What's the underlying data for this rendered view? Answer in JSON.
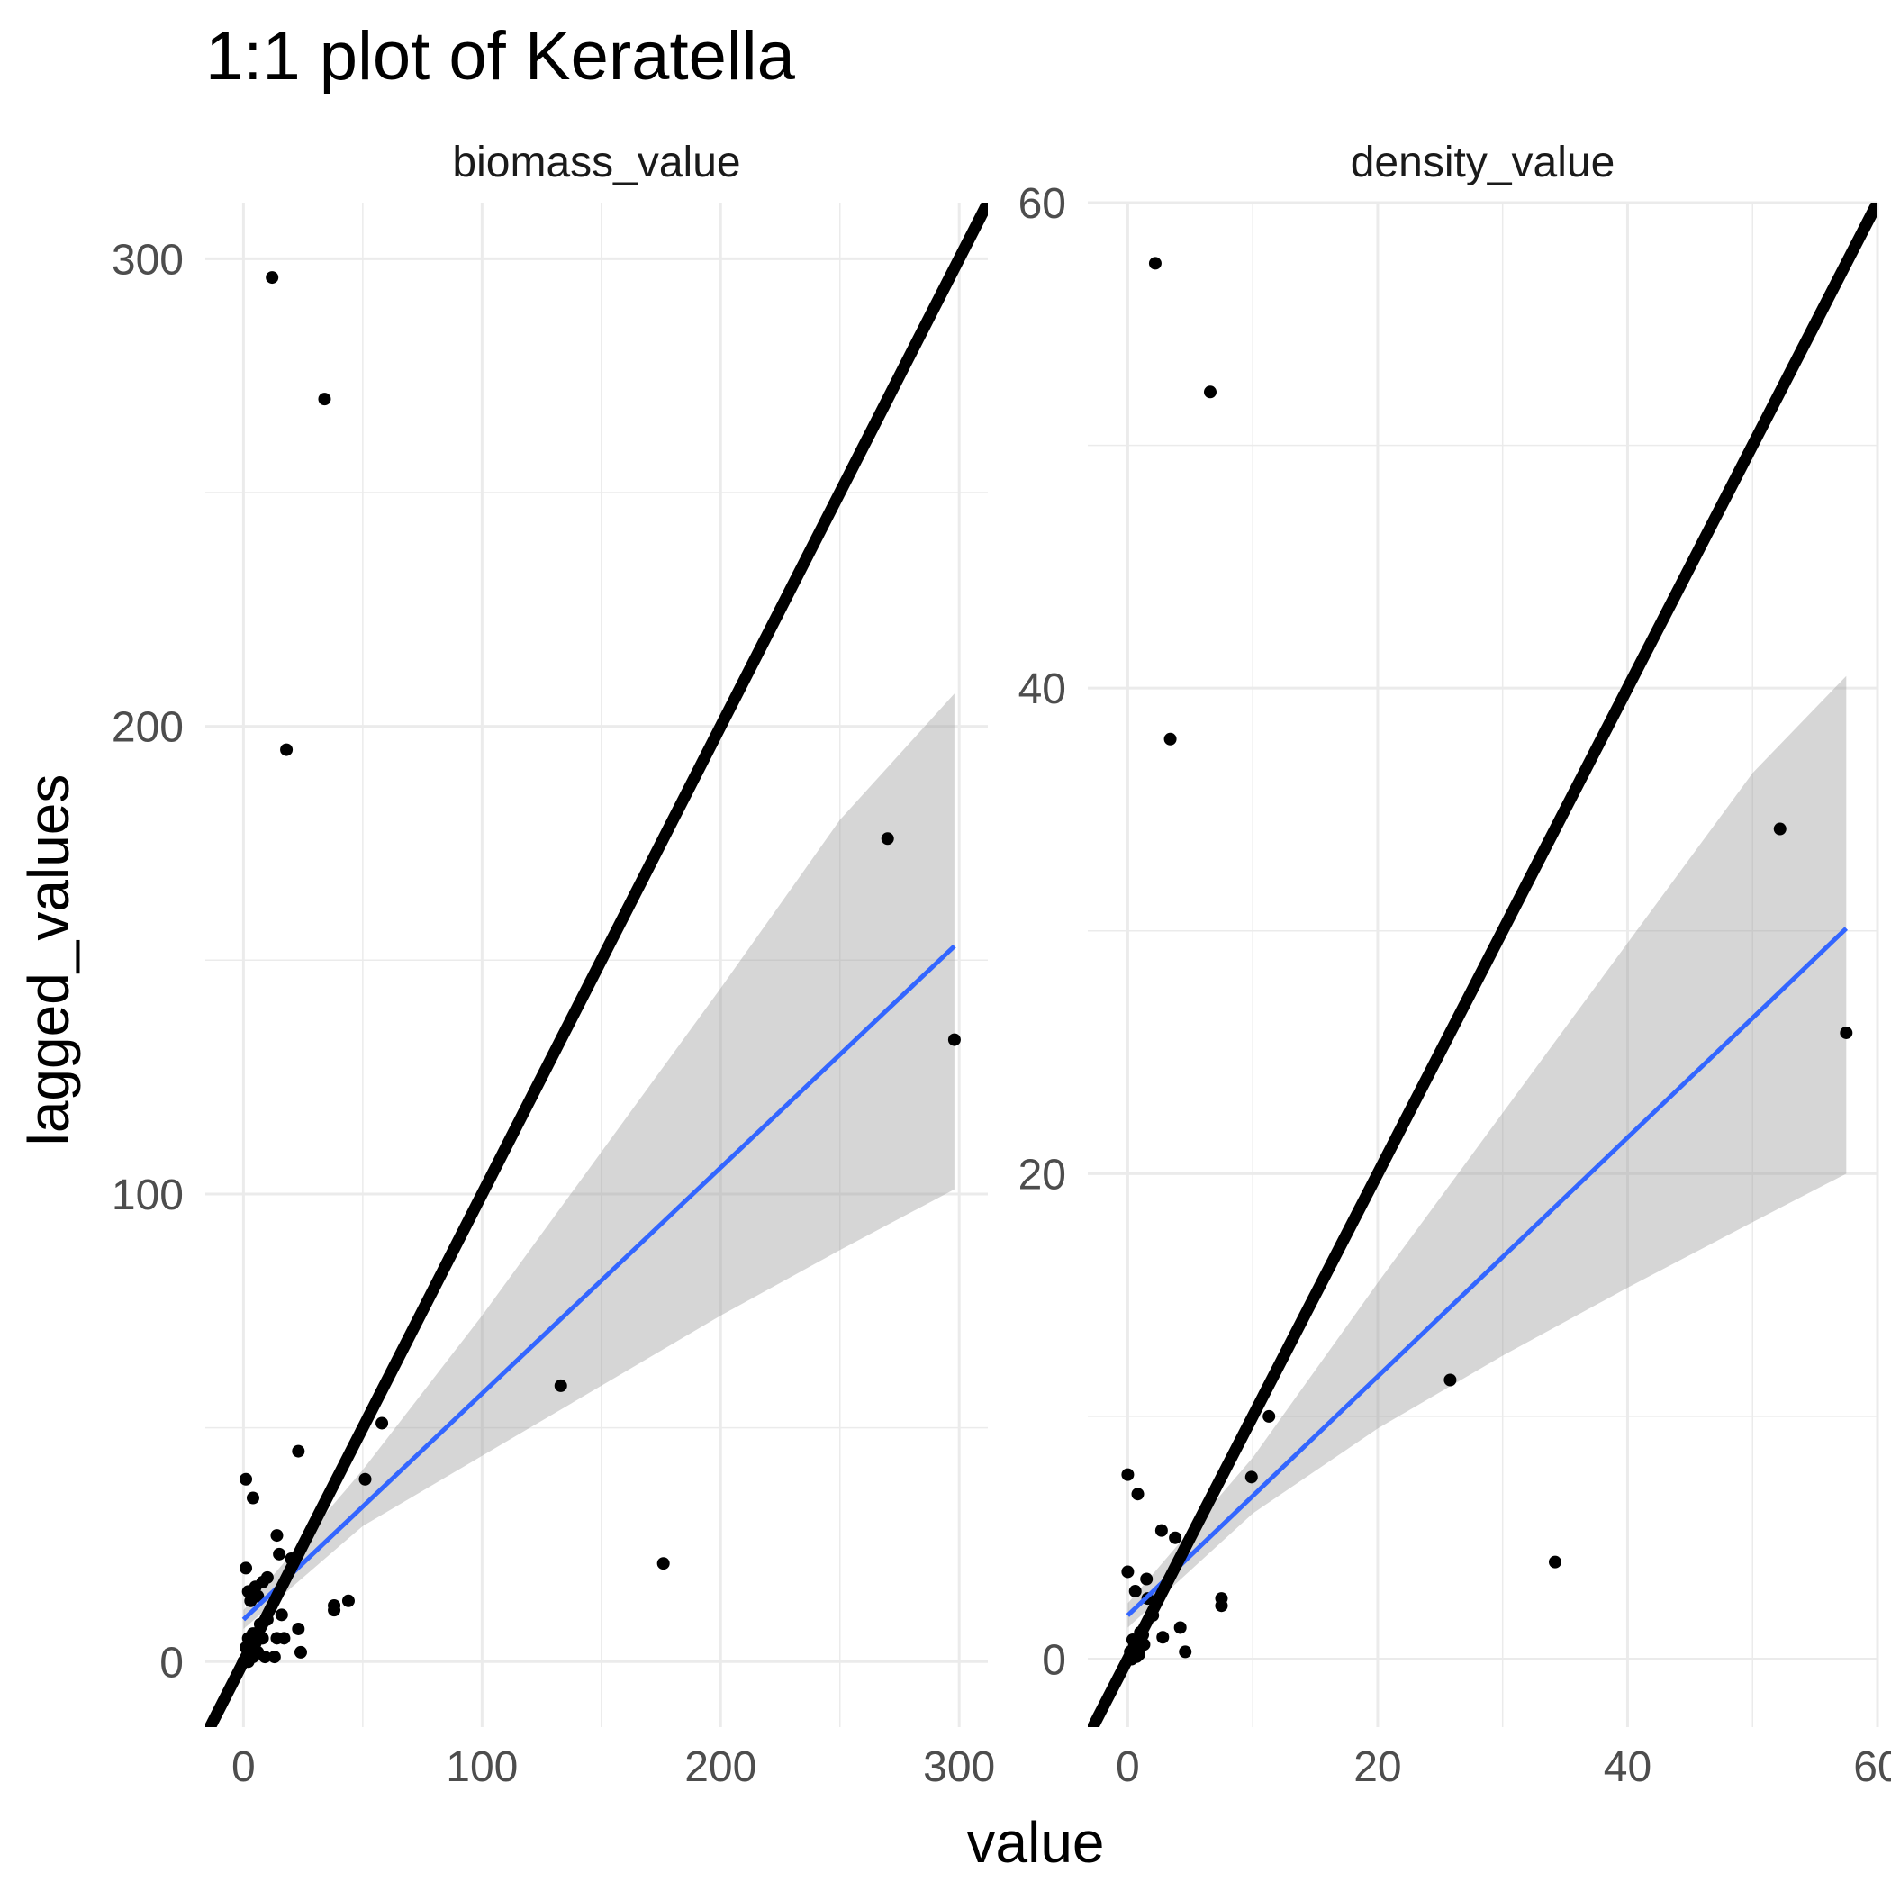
{
  "chart_data": {
    "type": "scatter",
    "title": "1:1 plot of Keratella",
    "xlabel": "value",
    "ylabel": "lagged_values",
    "colors": {
      "points": "#000000",
      "smooth": "#3366FF",
      "ribbon": "#999999",
      "identity": "#000000"
    },
    "facets": [
      {
        "label": "biomass_value",
        "xlim": [
          -16,
          312
        ],
        "ylim": [
          -14,
          312
        ],
        "xticks": [
          0,
          100,
          200,
          300
        ],
        "yticks": [
          0,
          100,
          200,
          300
        ],
        "xtick_labels": [
          "0",
          "100",
          "200",
          "300"
        ],
        "ytick_labels": [
          "0",
          "100",
          "200",
          "300"
        ],
        "xminor": [
          50,
          150,
          250
        ],
        "yminor": [
          50,
          150,
          250
        ],
        "identity_line": true,
        "smooth": {
          "x": [
            0,
            298
          ],
          "y": [
            9,
            153
          ],
          "ribbon_x": [
            0,
            50,
            100,
            150,
            200,
            250,
            298
          ],
          "ribbon_lower": [
            7,
            29,
            44,
            59,
            74,
            88,
            101
          ],
          "ribbon_upper": [
            11,
            41,
            74,
            109,
            144,
            180,
            207
          ]
        },
        "points": [
          [
            12,
            296
          ],
          [
            34,
            270
          ],
          [
            18,
            195
          ],
          [
            270,
            176
          ],
          [
            298,
            133
          ],
          [
            133,
            59
          ],
          [
            58,
            51
          ],
          [
            23,
            45
          ],
          [
            51,
            39
          ],
          [
            1,
            39
          ],
          [
            4,
            35
          ],
          [
            14,
            27
          ],
          [
            15,
            23
          ],
          [
            20,
            22
          ],
          [
            1,
            20
          ],
          [
            10,
            18
          ],
          [
            8,
            17
          ],
          [
            5,
            16
          ],
          [
            2,
            15
          ],
          [
            6,
            14
          ],
          [
            3,
            13
          ],
          [
            44,
            13
          ],
          [
            38,
            12
          ],
          [
            38,
            11
          ],
          [
            16,
            10
          ],
          [
            10,
            9
          ],
          [
            7,
            8
          ],
          [
            23,
            7
          ],
          [
            4,
            6
          ],
          [
            2,
            5
          ],
          [
            8,
            5
          ],
          [
            14,
            5
          ],
          [
            17,
            5
          ],
          [
            5,
            4
          ],
          [
            1,
            3
          ],
          [
            3,
            2
          ],
          [
            6,
            2
          ],
          [
            24,
            2
          ],
          [
            4,
            1
          ],
          [
            9,
            1
          ],
          [
            13,
            1
          ],
          [
            0,
            0
          ],
          [
            2,
            0
          ],
          [
            176,
            21
          ]
        ]
      },
      {
        "label": "density_value",
        "xlim": [
          -3.2,
          60
        ],
        "ylim": [
          -2.8,
          60
        ],
        "xticks": [
          0,
          20,
          40,
          60
        ],
        "yticks": [
          0,
          20,
          40,
          60
        ],
        "xtick_labels": [
          "0",
          "20",
          "40",
          "60"
        ],
        "ytick_labels": [
          "0",
          "20",
          "40",
          "60"
        ],
        "xminor": [
          10,
          30,
          50
        ],
        "yminor": [
          10,
          30,
          50
        ],
        "identity_line": true,
        "smooth": {
          "x": [
            0,
            57.5
          ],
          "y": [
            1.8,
            30.1
          ],
          "ribbon_x": [
            0,
            10,
            20,
            30,
            40,
            50,
            57.5
          ],
          "ribbon_lower": [
            1.3,
            6,
            9.5,
            12.5,
            15.3,
            18,
            20
          ],
          "ribbon_upper": [
            2.3,
            8.3,
            15.5,
            22.5,
            29.5,
            36.5,
            40.5
          ]
        },
        "points": [
          [
            2.2,
            57.5
          ],
          [
            6.6,
            52.2
          ],
          [
            3.4,
            37.9
          ],
          [
            52.2,
            34.2
          ],
          [
            57.5,
            25.8
          ],
          [
            25.8,
            11.5
          ],
          [
            11.3,
            10
          ],
          [
            9.9,
            7.5
          ],
          [
            0,
            7.6
          ],
          [
            0.8,
            6.8
          ],
          [
            2.7,
            5.3
          ],
          [
            3.8,
            5
          ],
          [
            0,
            3.6
          ],
          [
            1.5,
            3.3
          ],
          [
            0.6,
            2.8
          ],
          [
            7.5,
            2.5
          ],
          [
            7.5,
            2.2
          ],
          [
            2,
            1.8
          ],
          [
            4.2,
            1.3
          ],
          [
            1,
            1.1
          ],
          [
            2.8,
            0.9
          ],
          [
            0.4,
            0.8
          ],
          [
            1.3,
            0.6
          ],
          [
            4.6,
            0.3
          ],
          [
            0.2,
            0.3
          ],
          [
            0.7,
            0.1
          ],
          [
            0.5,
            0.5
          ],
          [
            1.2,
            1
          ],
          [
            0.3,
            0
          ],
          [
            0.9,
            0.2
          ],
          [
            34.2,
            4
          ],
          [
            1.6,
            2.5
          ]
        ]
      }
    ]
  }
}
